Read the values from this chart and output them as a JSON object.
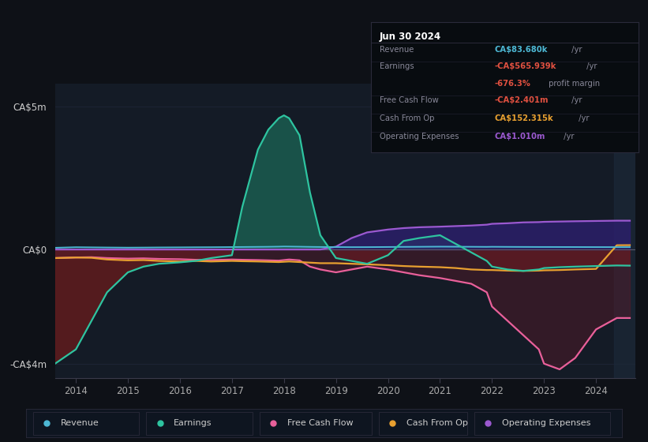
{
  "bg_color": "#0e1117",
  "plot_bg_color": "#141b26",
  "ylim": [
    -4500000,
    5800000
  ],
  "yticks": [
    -4000000,
    0,
    5000000
  ],
  "ytick_labels": [
    "-CA$4m",
    "CA$0",
    "CA$5m"
  ],
  "xlim_start": 2013.6,
  "xlim_end": 2024.75,
  "xticks": [
    2014,
    2015,
    2016,
    2017,
    2018,
    2019,
    2020,
    2021,
    2022,
    2023,
    2024
  ],
  "colors": {
    "revenue": "#4db8d4",
    "earnings": "#2ec4a0",
    "free_cash_flow": "#e8609a",
    "cash_from_op": "#e8a030",
    "operating_expenses": "#9b59d0"
  },
  "fill_colors": {
    "earnings_pos": "#1a5c50",
    "earnings_neg": "#6b1c1c",
    "opex_fill": "#2d1f6e",
    "fcf_fill": "#5a1a2a"
  },
  "info_box": {
    "title": "Jun 30 2024",
    "rows": [
      {
        "label": "Revenue",
        "value": "CA$83.680k",
        "unit": " /yr",
        "value_color": "#4db8d4"
      },
      {
        "label": "Earnings",
        "value": "-CA$565.939k",
        "unit": " /yr",
        "value_color": "#e05040"
      },
      {
        "label": "",
        "value": "-676.3%",
        "unit": " profit margin",
        "value_color": "#e05040"
      },
      {
        "label": "Free Cash Flow",
        "value": "-CA$2.401m",
        "unit": " /yr",
        "value_color": "#e05040"
      },
      {
        "label": "Cash From Op",
        "value": "CA$152.315k",
        "unit": " /yr",
        "value_color": "#e8a030"
      },
      {
        "label": "Operating Expenses",
        "value": "CA$1.010m",
        "unit": " /yr",
        "value_color": "#9b59d0"
      }
    ]
  },
  "legend": [
    {
      "label": "Revenue",
      "color": "#4db8d4"
    },
    {
      "label": "Earnings",
      "color": "#2ec4a0"
    },
    {
      "label": "Free Cash Flow",
      "color": "#e8609a"
    },
    {
      "label": "Cash From Op",
      "color": "#e8a030"
    },
    {
      "label": "Operating Expenses",
      "color": "#9b59d0"
    }
  ],
  "time_points": [
    2013.6,
    2014.0,
    2014.3,
    2014.6,
    2015.0,
    2015.3,
    2015.6,
    2016.0,
    2016.3,
    2016.6,
    2017.0,
    2017.2,
    2017.5,
    2017.7,
    2017.9,
    2018.0,
    2018.1,
    2018.3,
    2018.5,
    2018.7,
    2019.0,
    2019.3,
    2019.6,
    2020.0,
    2020.3,
    2020.6,
    2021.0,
    2021.3,
    2021.6,
    2021.9,
    2022.0,
    2022.3,
    2022.6,
    2022.9,
    2023.0,
    2023.3,
    2023.6,
    2024.0,
    2024.4,
    2024.65
  ],
  "revenue": [
    60000,
    80000,
    75000,
    70000,
    65000,
    68000,
    72000,
    75000,
    78000,
    80000,
    85000,
    88000,
    92000,
    95000,
    100000,
    105000,
    103000,
    98000,
    92000,
    88000,
    85000,
    82000,
    83000,
    88000,
    92000,
    95000,
    100000,
    98000,
    95000,
    92000,
    95000,
    92000,
    90000,
    88000,
    88000,
    87000,
    86000,
    84000,
    83000,
    83680
  ],
  "earnings": [
    -4000000,
    -3500000,
    -2500000,
    -1500000,
    -800000,
    -600000,
    -500000,
    -450000,
    -400000,
    -300000,
    -200000,
    1500000,
    3500000,
    4200000,
    4600000,
    4700000,
    4600000,
    4000000,
    2000000,
    500000,
    -300000,
    -400000,
    -500000,
    -200000,
    300000,
    400000,
    500000,
    200000,
    -100000,
    -400000,
    -600000,
    -700000,
    -750000,
    -700000,
    -650000,
    -620000,
    -600000,
    -580000,
    -560000,
    -565939
  ],
  "free_cash_flow": [
    -300000,
    -280000,
    -270000,
    -300000,
    -320000,
    -310000,
    -330000,
    -340000,
    -360000,
    -370000,
    -350000,
    -360000,
    -370000,
    -380000,
    -390000,
    -370000,
    -350000,
    -380000,
    -600000,
    -700000,
    -800000,
    -700000,
    -600000,
    -700000,
    -800000,
    -900000,
    -1000000,
    -1100000,
    -1200000,
    -1500000,
    -2000000,
    -2500000,
    -3000000,
    -3500000,
    -4000000,
    -4200000,
    -3800000,
    -2800000,
    -2400000,
    -2401000
  ],
  "cash_from_op": [
    -300000,
    -280000,
    -290000,
    -350000,
    -380000,
    -370000,
    -400000,
    -420000,
    -400000,
    -420000,
    -400000,
    -410000,
    -420000,
    -430000,
    -440000,
    -430000,
    -420000,
    -440000,
    -460000,
    -480000,
    -480000,
    -500000,
    -520000,
    -550000,
    -580000,
    -600000,
    -620000,
    -650000,
    -700000,
    -720000,
    -720000,
    -740000,
    -750000,
    -740000,
    -730000,
    -720000,
    -700000,
    -680000,
    150000,
    152315
  ],
  "operating_expenses": [
    0,
    0,
    0,
    0,
    0,
    0,
    0,
    0,
    0,
    0,
    0,
    0,
    0,
    0,
    0,
    0,
    0,
    0,
    0,
    0,
    100000,
    400000,
    600000,
    700000,
    750000,
    780000,
    800000,
    820000,
    840000,
    870000,
    900000,
    920000,
    950000,
    960000,
    970000,
    980000,
    990000,
    1000000,
    1010000,
    1010000
  ]
}
